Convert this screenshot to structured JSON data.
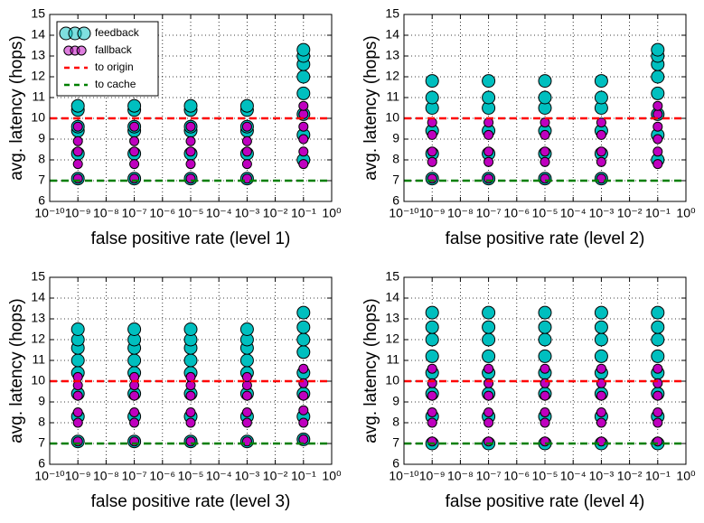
{
  "chart_data": [
    {
      "type": "scatter",
      "xscale": "log",
      "xlabel": "false positive rate (level 1)",
      "ylabel": "avg. latency (hops)",
      "xlim": [
        1e-10,
        1
      ],
      "ylim": [
        6,
        15
      ],
      "grid": true,
      "legend": "upper left",
      "xticks": [
        {
          "value": 1e-10,
          "label": "10⁻¹⁰"
        },
        {
          "value": 1e-09,
          "label": "10⁻⁹"
        },
        {
          "value": 1e-08,
          "label": "10⁻⁸"
        },
        {
          "value": 1e-07,
          "label": "10⁻⁷"
        },
        {
          "value": 1e-06,
          "label": "10⁻⁶"
        },
        {
          "value": 1e-05,
          "label": "10⁻⁵"
        },
        {
          "value": 0.0001,
          "label": "10⁻⁴"
        },
        {
          "value": 0.001,
          "label": "10⁻³"
        },
        {
          "value": 0.01,
          "label": "10⁻²"
        },
        {
          "value": 0.1,
          "label": "10⁻¹"
        },
        {
          "value": 1,
          "label": "10⁰"
        }
      ],
      "yticks": [
        6,
        7,
        8,
        9,
        10,
        11,
        12,
        13,
        14,
        15
      ],
      "series": [
        {
          "name": "feedback",
          "kind": "scatter",
          "color": "#00bfbf",
          "x": [
            1e-09,
            1e-09,
            1e-09,
            1e-09,
            1e-09,
            1e-09,
            1e-07,
            1e-07,
            1e-07,
            1e-07,
            1e-07,
            1e-07,
            1e-05,
            1e-05,
            1e-05,
            1e-05,
            1e-05,
            1e-05,
            0.001,
            0.001,
            0.001,
            0.001,
            0.001,
            0.001,
            0.1,
            0.1,
            0.1,
            0.1,
            0.1,
            0.1,
            0.1,
            0.1
          ],
          "values": [
            7.1,
            8.3,
            9.4,
            9.6,
            10.4,
            10.6,
            7.1,
            8.3,
            9.4,
            9.6,
            10.4,
            10.6,
            7.1,
            8.3,
            9.4,
            9.6,
            10.4,
            10.6,
            7.1,
            8.3,
            9.4,
            9.6,
            10.4,
            10.6,
            8.0,
            9.2,
            10.2,
            11.2,
            12.0,
            12.6,
            13.0,
            13.3
          ]
        },
        {
          "name": "fallback",
          "kind": "scatter",
          "color": "#bf00bf",
          "x": [
            1e-09,
            1e-09,
            1e-09,
            1e-09,
            1e-09,
            1e-07,
            1e-07,
            1e-07,
            1e-07,
            1e-07,
            1e-05,
            1e-05,
            1e-05,
            1e-05,
            1e-05,
            0.001,
            0.001,
            0.001,
            0.001,
            0.001,
            0.1,
            0.1,
            0.1,
            0.1,
            0.1,
            0.1
          ],
          "values": [
            7.1,
            7.8,
            8.4,
            8.9,
            9.6,
            7.1,
            7.8,
            8.4,
            8.9,
            9.6,
            7.1,
            7.8,
            8.4,
            8.9,
            9.6,
            7.1,
            7.8,
            8.4,
            8.9,
            9.6,
            7.8,
            8.4,
            9.0,
            9.6,
            10.2,
            10.6
          ]
        },
        {
          "name": "to origin",
          "kind": "hline",
          "color": "#ff0000",
          "y": 10
        },
        {
          "name": "to cache",
          "kind": "hline",
          "color": "#007f00",
          "y": 7
        }
      ]
    },
    {
      "type": "scatter",
      "xscale": "log",
      "xlabel": "false positive rate (level 2)",
      "ylabel": "avg. latency (hops)",
      "xlim": [
        1e-10,
        1
      ],
      "ylim": [
        6,
        15
      ],
      "grid": true,
      "xticks": [
        {
          "value": 1e-10,
          "label": "10⁻¹⁰"
        },
        {
          "value": 1e-09,
          "label": "10⁻⁹"
        },
        {
          "value": 1e-08,
          "label": "10⁻⁸"
        },
        {
          "value": 1e-07,
          "label": "10⁻⁷"
        },
        {
          "value": 1e-06,
          "label": "10⁻⁶"
        },
        {
          "value": 1e-05,
          "label": "10⁻⁵"
        },
        {
          "value": 0.0001,
          "label": "10⁻⁴"
        },
        {
          "value": 0.001,
          "label": "10⁻³"
        },
        {
          "value": 0.01,
          "label": "10⁻²"
        },
        {
          "value": 0.1,
          "label": "10⁻¹"
        },
        {
          "value": 1,
          "label": "10⁰"
        }
      ],
      "yticks": [
        6,
        7,
        8,
        9,
        10,
        11,
        12,
        13,
        14,
        15
      ],
      "series": [
        {
          "kind": "scatter",
          "color": "#00bfbf",
          "x": [
            1e-09,
            1e-09,
            1e-09,
            1e-09,
            1e-09,
            1e-09,
            1e-07,
            1e-07,
            1e-07,
            1e-07,
            1e-07,
            1e-07,
            1e-05,
            1e-05,
            1e-05,
            1e-05,
            1e-05,
            1e-05,
            0.001,
            0.001,
            0.001,
            0.001,
            0.001,
            0.001,
            0.1,
            0.1,
            0.1,
            0.1,
            0.1,
            0.1,
            0.1,
            0.1
          ],
          "values": [
            7.1,
            8.3,
            9.4,
            10.5,
            11.0,
            11.8,
            7.1,
            8.3,
            9.4,
            10.5,
            11.0,
            11.8,
            7.1,
            8.3,
            9.4,
            10.5,
            11.0,
            11.8,
            7.1,
            8.3,
            9.4,
            10.5,
            11.0,
            11.8,
            8.0,
            9.2,
            10.2,
            11.2,
            12.0,
            12.6,
            13.0,
            13.3
          ]
        },
        {
          "kind": "scatter",
          "color": "#bf00bf",
          "x": [
            1e-09,
            1e-09,
            1e-09,
            1e-09,
            1e-09,
            1e-07,
            1e-07,
            1e-07,
            1e-07,
            1e-07,
            1e-05,
            1e-05,
            1e-05,
            1e-05,
            1e-05,
            0.001,
            0.001,
            0.001,
            0.001,
            0.001,
            0.1,
            0.1,
            0.1,
            0.1,
            0.1,
            0.1
          ],
          "values": [
            7.1,
            7.9,
            8.4,
            9.2,
            9.8,
            7.1,
            7.9,
            8.4,
            9.2,
            9.8,
            7.1,
            7.9,
            8.4,
            9.2,
            9.8,
            7.1,
            7.9,
            8.4,
            9.2,
            9.8,
            7.8,
            8.4,
            9.0,
            9.6,
            10.2,
            10.6
          ]
        },
        {
          "kind": "hline",
          "color": "#ff0000",
          "y": 10
        },
        {
          "kind": "hline",
          "color": "#007f00",
          "y": 7
        }
      ]
    },
    {
      "type": "scatter",
      "xscale": "log",
      "xlabel": "false positive rate (level 3)",
      "ylabel": "avg. latency (hops)",
      "xlim": [
        1e-10,
        1
      ],
      "ylim": [
        6,
        15
      ],
      "grid": true,
      "xticks": [
        {
          "value": 1e-10,
          "label": "10⁻¹⁰"
        },
        {
          "value": 1e-09,
          "label": "10⁻⁹"
        },
        {
          "value": 1e-08,
          "label": "10⁻⁸"
        },
        {
          "value": 1e-07,
          "label": "10⁻⁷"
        },
        {
          "value": 1e-06,
          "label": "10⁻⁶"
        },
        {
          "value": 1e-05,
          "label": "10⁻⁵"
        },
        {
          "value": 0.0001,
          "label": "10⁻⁴"
        },
        {
          "value": 0.001,
          "label": "10⁻³"
        },
        {
          "value": 0.01,
          "label": "10⁻²"
        },
        {
          "value": 0.1,
          "label": "10⁻¹"
        },
        {
          "value": 1,
          "label": "10⁰"
        }
      ],
      "yticks": [
        6,
        7,
        8,
        9,
        10,
        11,
        12,
        13,
        14,
        15
      ],
      "series": [
        {
          "kind": "scatter",
          "color": "#00bfbf",
          "x": [
            1e-09,
            1e-09,
            1e-09,
            1e-09,
            1e-09,
            1e-09,
            1e-09,
            1e-09,
            1e-07,
            1e-07,
            1e-07,
            1e-07,
            1e-07,
            1e-07,
            1e-07,
            1e-07,
            1e-05,
            1e-05,
            1e-05,
            1e-05,
            1e-05,
            1e-05,
            1e-05,
            1e-05,
            0.001,
            0.001,
            0.001,
            0.001,
            0.001,
            0.001,
            0.001,
            0.001,
            0.1,
            0.1,
            0.1,
            0.1,
            0.1,
            0.1,
            0.1,
            0.1
          ],
          "values": [
            7.1,
            8.3,
            9.4,
            10.4,
            11.0,
            11.6,
            12.0,
            12.5,
            7.1,
            8.3,
            9.4,
            10.4,
            11.0,
            11.6,
            12.0,
            12.5,
            7.1,
            8.3,
            9.4,
            10.4,
            11.0,
            11.6,
            12.0,
            12.5,
            7.1,
            8.3,
            9.4,
            10.4,
            11.0,
            11.6,
            12.0,
            12.5,
            7.2,
            8.3,
            9.4,
            10.4,
            11.4,
            12.0,
            12.6,
            13.3
          ]
        },
        {
          "kind": "scatter",
          "color": "#bf00bf",
          "x": [
            1e-09,
            1e-09,
            1e-09,
            1e-09,
            1e-09,
            1e-09,
            1e-07,
            1e-07,
            1e-07,
            1e-07,
            1e-07,
            1e-07,
            1e-05,
            1e-05,
            1e-05,
            1e-05,
            1e-05,
            1e-05,
            0.001,
            0.001,
            0.001,
            0.001,
            0.001,
            0.001,
            0.1,
            0.1,
            0.1,
            0.1,
            0.1,
            0.1
          ],
          "values": [
            7.1,
            8.0,
            8.5,
            9.3,
            9.8,
            10.2,
            7.1,
            8.0,
            8.5,
            9.3,
            9.8,
            10.2,
            7.1,
            8.0,
            8.5,
            9.3,
            9.8,
            10.2,
            7.1,
            8.0,
            8.5,
            9.3,
            9.8,
            10.2,
            7.2,
            8.0,
            8.6,
            9.3,
            9.9,
            10.6
          ]
        },
        {
          "kind": "hline",
          "color": "#ff0000",
          "y": 10
        },
        {
          "kind": "hline",
          "color": "#007f00",
          "y": 7
        }
      ]
    },
    {
      "type": "scatter",
      "xscale": "log",
      "xlabel": "false positive rate (level 4)",
      "ylabel": "avg. latency (hops)",
      "xlim": [
        1e-10,
        1
      ],
      "ylim": [
        6,
        15
      ],
      "grid": true,
      "xticks": [
        {
          "value": 1e-10,
          "label": "10⁻¹⁰"
        },
        {
          "value": 1e-09,
          "label": "10⁻⁹"
        },
        {
          "value": 1e-08,
          "label": "10⁻⁸"
        },
        {
          "value": 1e-07,
          "label": "10⁻⁷"
        },
        {
          "value": 1e-06,
          "label": "10⁻⁶"
        },
        {
          "value": 1e-05,
          "label": "10⁻⁵"
        },
        {
          "value": 0.0001,
          "label": "10⁻⁴"
        },
        {
          "value": 0.001,
          "label": "10⁻³"
        },
        {
          "value": 0.01,
          "label": "10⁻²"
        },
        {
          "value": 0.1,
          "label": "10⁻¹"
        },
        {
          "value": 1,
          "label": "10⁰"
        }
      ],
      "yticks": [
        6,
        7,
        8,
        9,
        10,
        11,
        12,
        13,
        14,
        15
      ],
      "series": [
        {
          "kind": "scatter",
          "color": "#00bfbf",
          "x": [
            1e-09,
            1e-09,
            1e-09,
            1e-09,
            1e-09,
            1e-09,
            1e-09,
            1e-09,
            1e-07,
            1e-07,
            1e-07,
            1e-07,
            1e-07,
            1e-07,
            1e-07,
            1e-07,
            1e-05,
            1e-05,
            1e-05,
            1e-05,
            1e-05,
            1e-05,
            1e-05,
            1e-05,
            0.001,
            0.001,
            0.001,
            0.001,
            0.001,
            0.001,
            0.001,
            0.001,
            0.1,
            0.1,
            0.1,
            0.1,
            0.1,
            0.1,
            0.1,
            0.1
          ],
          "values": [
            7.0,
            8.3,
            9.4,
            10.4,
            11.2,
            12.0,
            12.6,
            13.3,
            7.0,
            8.3,
            9.4,
            10.4,
            11.2,
            12.0,
            12.6,
            13.3,
            7.0,
            8.3,
            9.4,
            10.4,
            11.2,
            12.0,
            12.6,
            13.3,
            7.0,
            8.3,
            9.4,
            10.4,
            11.2,
            12.0,
            12.6,
            13.3,
            7.0,
            8.3,
            9.4,
            10.4,
            11.2,
            12.0,
            12.6,
            13.3
          ]
        },
        {
          "kind": "scatter",
          "color": "#bf00bf",
          "x": [
            1e-09,
            1e-09,
            1e-09,
            1e-09,
            1e-09,
            1e-09,
            1e-07,
            1e-07,
            1e-07,
            1e-07,
            1e-07,
            1e-07,
            1e-05,
            1e-05,
            1e-05,
            1e-05,
            1e-05,
            1e-05,
            0.001,
            0.001,
            0.001,
            0.001,
            0.001,
            0.001,
            0.1,
            0.1,
            0.1,
            0.1,
            0.1,
            0.1
          ],
          "values": [
            7.1,
            8.0,
            8.5,
            9.3,
            9.9,
            10.6,
            7.1,
            8.0,
            8.5,
            9.3,
            9.9,
            10.6,
            7.1,
            8.0,
            8.5,
            9.3,
            9.9,
            10.6,
            7.1,
            8.0,
            8.5,
            9.3,
            9.9,
            10.6,
            7.1,
            8.0,
            8.5,
            9.3,
            9.9,
            10.6
          ]
        },
        {
          "kind": "hline",
          "color": "#ff0000",
          "y": 10
        },
        {
          "kind": "hline",
          "color": "#007f00",
          "y": 7
        }
      ]
    }
  ]
}
